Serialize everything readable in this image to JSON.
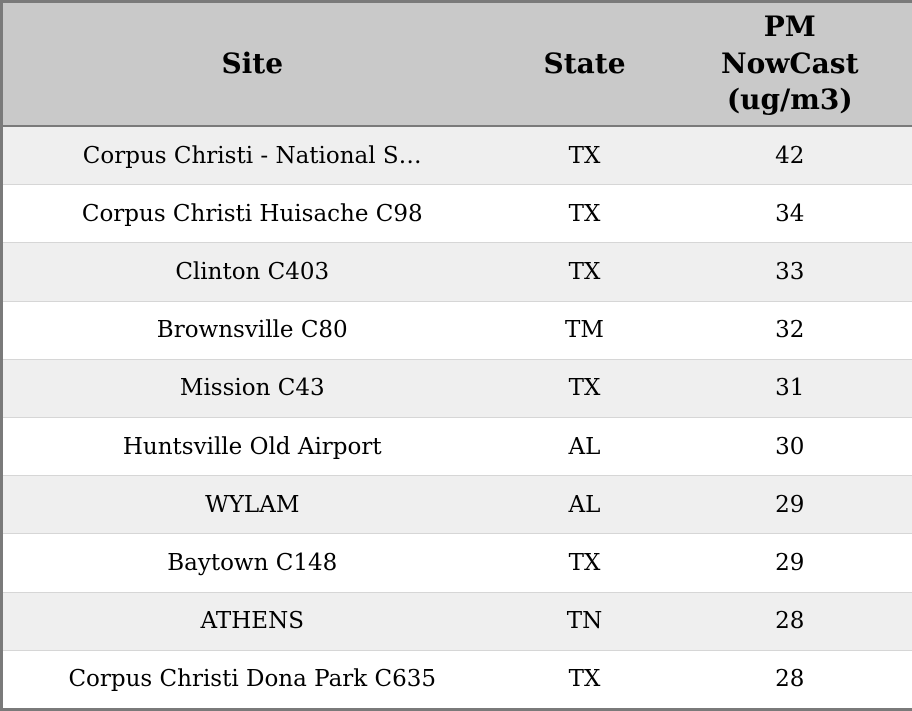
{
  "chart_data": {
    "type": "table",
    "columns": [
      "Site",
      "State",
      "PM NowCast (ug/m3)"
    ],
    "rows": [
      {
        "site": "Corpus Christi - National S…",
        "state": "TX",
        "pm": "42"
      },
      {
        "site": "Corpus Christi Huisache C98",
        "state": "TX",
        "pm": "34"
      },
      {
        "site": "Clinton C403",
        "state": "TX",
        "pm": "33"
      },
      {
        "site": "Brownsville C80",
        "state": "TM",
        "pm": "32"
      },
      {
        "site": "Mission C43",
        "state": "TX",
        "pm": "31"
      },
      {
        "site": "Huntsville Old Airport",
        "state": "AL",
        "pm": "30"
      },
      {
        "site": "WYLAM",
        "state": "AL",
        "pm": "29"
      },
      {
        "site": "Baytown C148",
        "state": "TX",
        "pm": "29"
      },
      {
        "site": "ATHENS",
        "state": "TN",
        "pm": "28"
      },
      {
        "site": "Corpus Christi Dona Park C635",
        "state": "TX",
        "pm": "28"
      }
    ]
  },
  "table": {
    "header": {
      "site": "Site",
      "state": "State",
      "pm_line1": "PM",
      "pm_line2": "NowCast",
      "pm_line3": "(ug/m3)"
    }
  },
  "colors": {
    "header_bg": "#c9c9c9",
    "row_alt_bg": "#efefef",
    "row_bg": "#ffffff",
    "border": "#7a7a7a"
  }
}
